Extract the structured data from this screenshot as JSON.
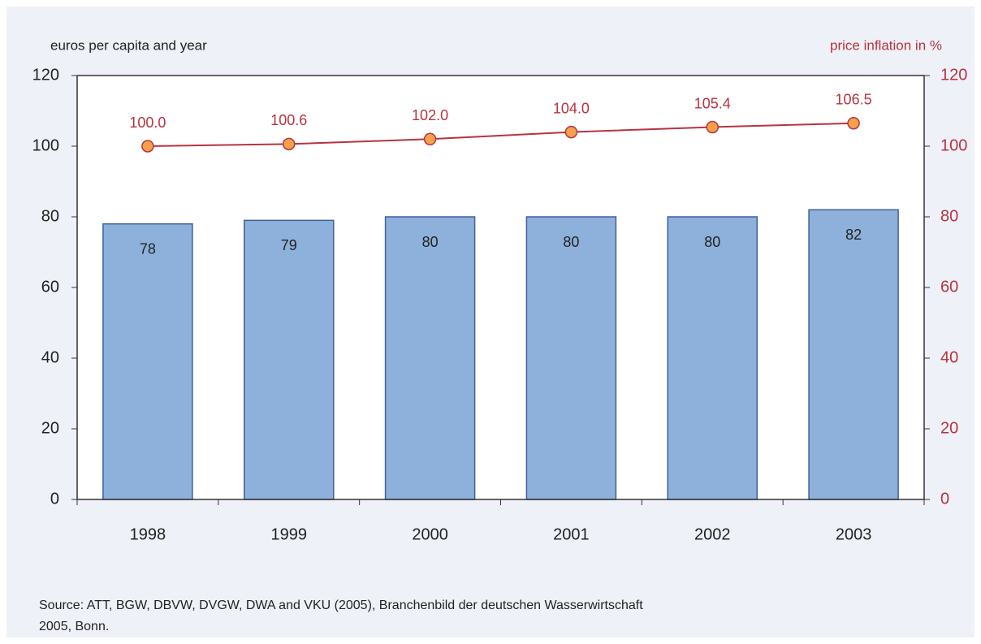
{
  "chart_data": {
    "type": "bar",
    "ylabel": "euros per capita and year",
    "y2label": "price inflation in %",
    "categories": [
      "1998",
      "1999",
      "2000",
      "2001",
      "2002",
      "2003"
    ],
    "series": [
      {
        "type": "bar",
        "color": "#8eb1dc",
        "values": [
          78,
          79,
          80,
          80,
          80,
          82
        ]
      },
      {
        "type": "line",
        "color": "#b8333f",
        "axis": "y2",
        "values": [
          100.0,
          100.6,
          102.0,
          104.0,
          105.4,
          106.5
        ],
        "value_labels": [
          "100.0",
          "100.6",
          "102.0",
          "104.0",
          "105.4",
          "106.5"
        ]
      }
    ],
    "ylim": [
      0,
      120
    ],
    "yticks": [
      0,
      20,
      40,
      60,
      80,
      100,
      120
    ],
    "y2lim": [
      0,
      120
    ],
    "y2ticks": [
      0,
      20,
      40,
      60,
      80,
      100,
      120
    ],
    "source": [
      "Source: ATT, BGW, DBVW, DVGW, DWA and VKU (2005), Branchenbild der deutschen Wasserwirtschaft",
      "2005, Bonn."
    ]
  }
}
